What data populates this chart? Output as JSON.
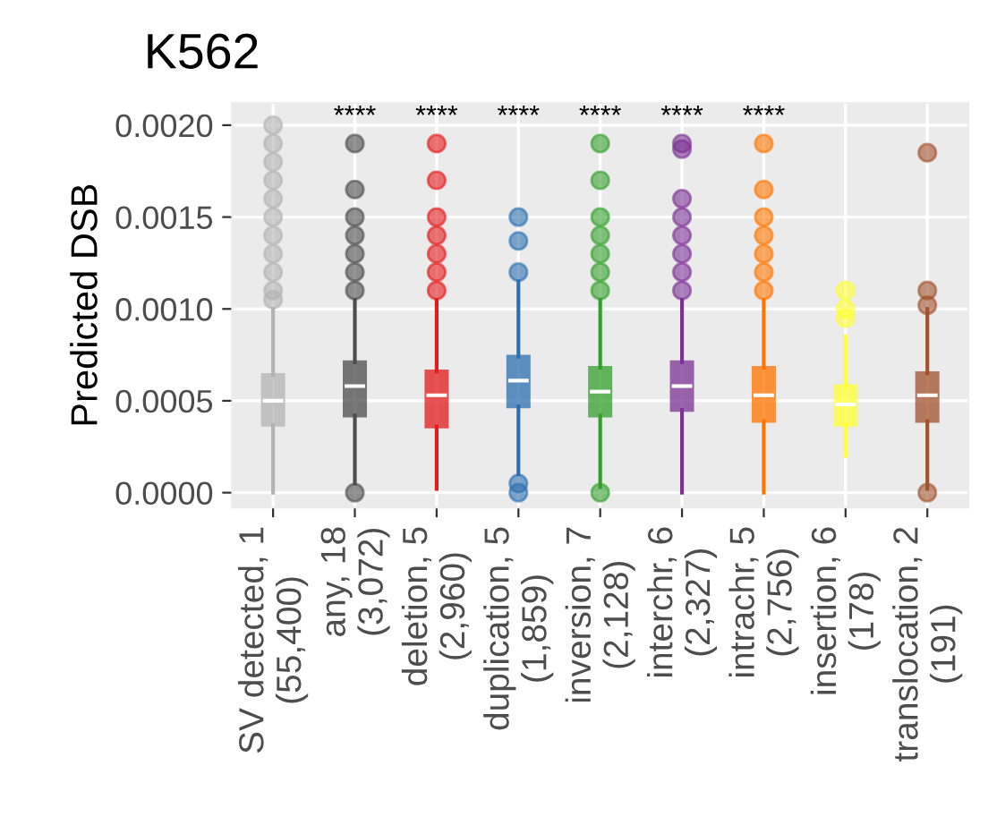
{
  "chart_data": {
    "type": "box",
    "title": "K562",
    "ylabel": "Predicted DSB",
    "categories": [
      "SV detected, 1\n(55,400)",
      "any, 18\n(3,072)",
      "deletion, 5\n(2,960)",
      "duplication, 5\n(1,859)",
      "inversion, 7\n(2,128)",
      "interchr, 6\n(2,327)",
      "intrachr, 5\n(2,756)",
      "insertion, 6\n(178)",
      "translocation, 2\n(191)"
    ],
    "colors": [
      "#b3b3b3",
      "#4d4d4d",
      "#e41a1c",
      "#2c6fb0",
      "#33a02c",
      "#7b3294",
      "#ff7400",
      "#ffff33",
      "#a0522d"
    ],
    "boxes": [
      {
        "low": 0.0,
        "q1": 0.00037,
        "median": 0.0005,
        "q3": 0.00064,
        "high": 0.001,
        "outliers": [
          0.00105,
          0.0011,
          0.0012,
          0.0013,
          0.0014,
          0.0015,
          0.0016,
          0.0017,
          0.0018,
          0.0019,
          0.002
        ]
      },
      {
        "low": 5e-05,
        "q1": 0.00042,
        "median": 0.00058,
        "q3": 0.00071,
        "high": 0.00105,
        "outliers": [
          0.0,
          0.0011,
          0.0012,
          0.0013,
          0.0014,
          0.0015,
          0.00165,
          0.0019
        ]
      },
      {
        "low": 2e-05,
        "q1": 0.00036,
        "median": 0.00053,
        "q3": 0.00066,
        "high": 0.00105,
        "outliers": [
          0.0011,
          0.0012,
          0.0013,
          0.0014,
          0.0015,
          0.0017,
          0.0019
        ]
      },
      {
        "low": 0.0001,
        "q1": 0.00047,
        "median": 0.00061,
        "q3": 0.00074,
        "high": 0.00115,
        "outliers": [
          0.0,
          5e-05,
          0.0012,
          0.00137,
          0.0015
        ]
      },
      {
        "low": 3e-05,
        "q1": 0.00042,
        "median": 0.00055,
        "q3": 0.00068,
        "high": 0.00105,
        "outliers": [
          0.0,
          0.0011,
          0.0012,
          0.0013,
          0.0014,
          0.0015,
          0.0017,
          0.0019
        ]
      },
      {
        "low": 0.0,
        "q1": 0.00045,
        "median": 0.00058,
        "q3": 0.00071,
        "high": 0.00105,
        "outliers": [
          0.0011,
          0.0012,
          0.0013,
          0.0014,
          0.0015,
          0.0016,
          0.00187,
          0.0019
        ]
      },
      {
        "low": 0.0,
        "q1": 0.00039,
        "median": 0.00053,
        "q3": 0.00068,
        "high": 0.00105,
        "outliers": [
          0.0011,
          0.0012,
          0.0013,
          0.0014,
          0.0015,
          0.00165,
          0.0019
        ]
      },
      {
        "low": 0.0002,
        "q1": 0.00037,
        "median": 0.00048,
        "q3": 0.00058,
        "high": 0.00085,
        "outliers": [
          0.00095,
          0.001,
          0.0011
        ]
      },
      {
        "low": 2e-05,
        "q1": 0.00039,
        "median": 0.00053,
        "q3": 0.00065,
        "high": 0.001,
        "outliers": [
          0.0,
          0.00102,
          0.0011,
          0.00185
        ]
      }
    ],
    "annotations": [
      "****",
      "****",
      "****",
      "****",
      "****",
      "****"
    ],
    "ylim": [
      -8e-05,
      0.00212
    ],
    "yticks": [
      {
        "value": 0.0,
        "label": "0.0000"
      },
      {
        "value": 0.0005,
        "label": "0.0005"
      },
      {
        "value": 0.001,
        "label": "0.0010"
      },
      {
        "value": 0.0015,
        "label": "0.0015"
      },
      {
        "value": 0.002,
        "label": "0.0020"
      }
    ],
    "grid": true
  }
}
